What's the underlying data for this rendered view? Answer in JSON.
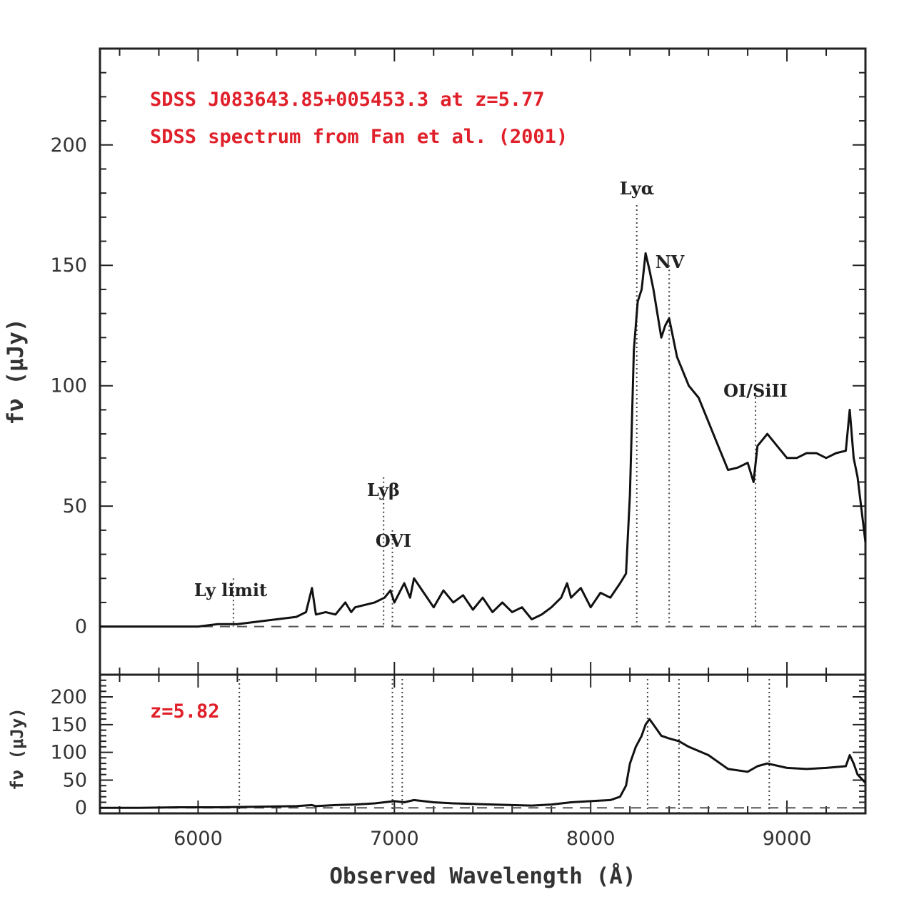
{
  "chart_data": [
    {
      "type": "line",
      "panel": "top",
      "annotations": [
        "SDSS J083643.85+005453.3 at z=5.77",
        "SDSS spectrum from Fan et al. (2001)"
      ],
      "xlabel": "Observed Wavelength (Å)",
      "ylabel": "fν (μJy)",
      "xlim": [
        5500,
        9400
      ],
      "ylim": [
        -20,
        240
      ],
      "x_ticks": [
        6000,
        7000,
        8000,
        9000
      ],
      "y_ticks": [
        0,
        50,
        100,
        150,
        200
      ],
      "zero_line": "dashed",
      "emission_lines": [
        {
          "label": "Ly limit",
          "x": 6180
        },
        {
          "label": "Lyβ",
          "x": 6945
        },
        {
          "label": "OVI",
          "x": 6990
        },
        {
          "label": "Lyα",
          "x": 8235
        },
        {
          "label": "NV",
          "x": 8400
        },
        {
          "label": "OI/SiII",
          "x": 8840
        }
      ],
      "series": [
        {
          "x": [
            5500,
            5600,
            5700,
            5800,
            5900,
            6000,
            6100,
            6200,
            6300,
            6400,
            6500,
            6550,
            6580,
            6600,
            6650,
            6700,
            6750,
            6780,
            6800,
            6850,
            6900,
            6950,
            6980,
            7000,
            7050,
            7080,
            7100,
            7150,
            7200,
            7250,
            7300,
            7350,
            7400,
            7450,
            7500,
            7550,
            7600,
            7650,
            7700,
            7750,
            7800,
            7850,
            7880,
            7900,
            7950,
            8000,
            8050,
            8100,
            8150,
            8180,
            8200,
            8220,
            8240,
            8260,
            8280,
            8300,
            8320,
            8340,
            8360,
            8380,
            8400,
            8420,
            8440,
            8460,
            8500,
            8550,
            8600,
            8650,
            8700,
            8750,
            8800,
            8830,
            8850,
            8880,
            8900,
            8950,
            9000,
            9050,
            9100,
            9150,
            9200,
            9250,
            9300,
            9320,
            9340,
            9360,
            9400
          ],
          "y": [
            0,
            0,
            0,
            0,
            0,
            0,
            1,
            1,
            2,
            3,
            4,
            6,
            16,
            5,
            6,
            5,
            10,
            6,
            8,
            9,
            10,
            12,
            15,
            10,
            18,
            12,
            20,
            14,
            8,
            15,
            10,
            13,
            7,
            12,
            6,
            10,
            6,
            8,
            3,
            5,
            8,
            12,
            18,
            12,
            16,
            8,
            14,
            12,
            18,
            22,
            55,
            115,
            135,
            140,
            155,
            148,
            140,
            130,
            120,
            125,
            128,
            120,
            112,
            108,
            100,
            95,
            85,
            75,
            65,
            66,
            68,
            60,
            75,
            78,
            80,
            75,
            70,
            70,
            72,
            72,
            70,
            72,
            73,
            90,
            70,
            62,
            35
          ]
        }
      ]
    },
    {
      "type": "line",
      "panel": "bottom",
      "annotations": [
        "z=5.82"
      ],
      "ylabel": "fν (μJy)",
      "xlim": [
        5500,
        9400
      ],
      "ylim": [
        -10,
        240
      ],
      "y_ticks": [
        0,
        50,
        100,
        150,
        200
      ],
      "zero_line": "dashed",
      "emission_lines": [
        {
          "x": 6210
        },
        {
          "x": 6990
        },
        {
          "x": 7040
        },
        {
          "x": 8290
        },
        {
          "x": 8450
        },
        {
          "x": 8910
        }
      ],
      "series": [
        {
          "x": [
            5500,
            5700,
            5900,
            6100,
            6300,
            6500,
            6580,
            6600,
            6700,
            6800,
            6900,
            7000,
            7050,
            7100,
            7200,
            7300,
            7400,
            7500,
            7600,
            7700,
            7800,
            7900,
            8000,
            8100,
            8150,
            8180,
            8200,
            8230,
            8260,
            8280,
            8300,
            8330,
            8360,
            8400,
            8450,
            8500,
            8600,
            8700,
            8800,
            8850,
            8900,
            9000,
            9100,
            9200,
            9300,
            9320,
            9340,
            9360,
            9400
          ],
          "y": [
            0,
            0,
            1,
            1,
            2,
            3,
            5,
            3,
            5,
            6,
            8,
            12,
            10,
            14,
            10,
            8,
            7,
            6,
            5,
            4,
            6,
            10,
            12,
            14,
            20,
            40,
            80,
            110,
            130,
            150,
            160,
            145,
            130,
            125,
            120,
            110,
            95,
            70,
            65,
            75,
            80,
            72,
            70,
            72,
            75,
            95,
            80,
            60,
            45
          ]
        }
      ]
    }
  ]
}
